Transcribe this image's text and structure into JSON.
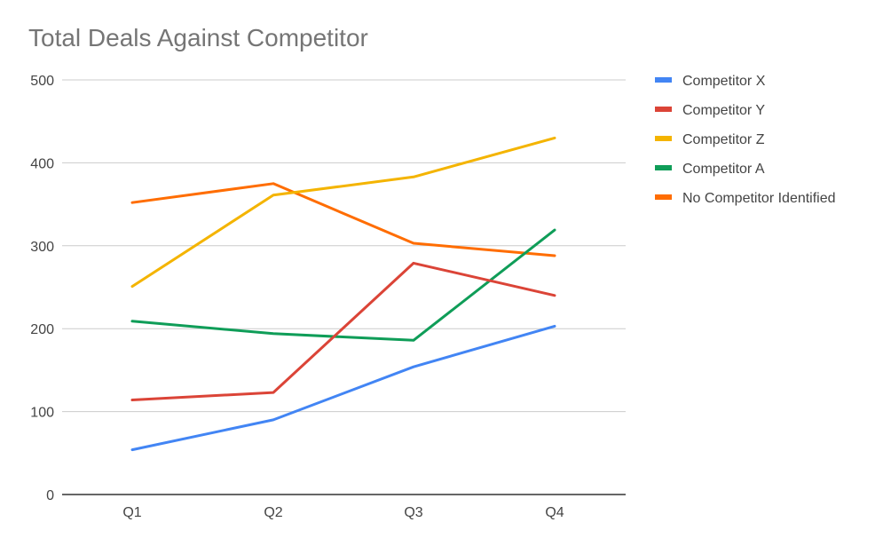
{
  "chart_data": {
    "type": "line",
    "title": "Total Deals Against Competitor",
    "xlabel": "",
    "ylabel": "",
    "categories": [
      "Q1",
      "Q2",
      "Q3",
      "Q4"
    ],
    "ylim": [
      0,
      500
    ],
    "yticks": [
      0,
      100,
      200,
      300,
      400,
      500
    ],
    "grid": true,
    "legend_position": "right",
    "series": [
      {
        "name": "Competitor X",
        "color": "#4285F4",
        "values": [
          54,
          90,
          154,
          203
        ]
      },
      {
        "name": "Competitor Y",
        "color": "#DB4437",
        "values": [
          114,
          123,
          279,
          240
        ]
      },
      {
        "name": "Competitor Z",
        "color": "#F4B400",
        "values": [
          251,
          361,
          383,
          430
        ]
      },
      {
        "name": "Competitor A",
        "color": "#0F9D58",
        "values": [
          209,
          194,
          186,
          319
        ]
      },
      {
        "name": "No Competitor Identified",
        "color": "#FF6D01",
        "values": [
          352,
          375,
          303,
          288
        ]
      }
    ]
  }
}
